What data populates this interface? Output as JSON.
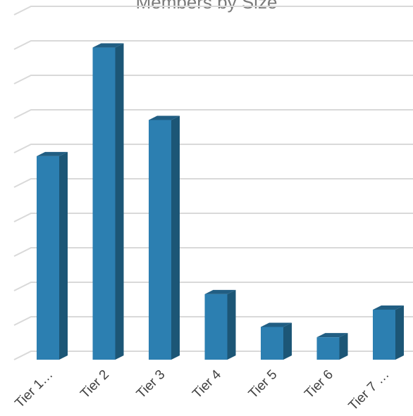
{
  "chart_data": {
    "type": "bar",
    "title": "Members by Size",
    "categories": [
      "Tier 1…",
      "Tier 2",
      "Tier 3",
      "Tier 4",
      "Tier 5",
      "Tier 6",
      "Tier 7 …"
    ],
    "values": [
      5.9,
      9.05,
      6.95,
      1.9,
      0.95,
      0.65,
      1.45
    ],
    "ylim": [
      0,
      10
    ],
    "grid": true,
    "legend": "none",
    "colors": {
      "bar_front": "#2c7fb1",
      "bar_side": "#1c5676",
      "bar_top": "#215e83",
      "grid": "#d9d9d9"
    }
  }
}
